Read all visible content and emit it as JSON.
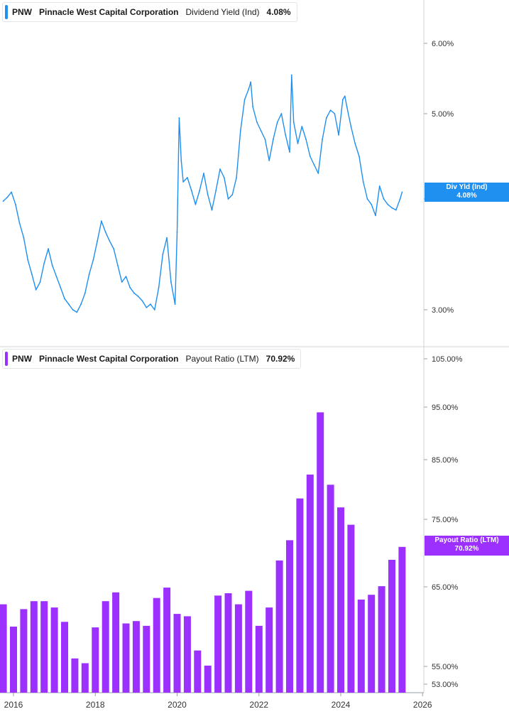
{
  "panels": {
    "top": {
      "legend": {
        "ticker": "PNW",
        "company": "Pinnacle West Capital Corporation",
        "metric": "Dividend Yield (Ind)",
        "value": "4.08%"
      },
      "flag": {
        "label": "Div Yld (Ind)",
        "value": "4.08%"
      },
      "color": "#1f8ff0"
    },
    "bottom": {
      "legend": {
        "ticker": "PNW",
        "company": "Pinnacle West Capital Corporation",
        "metric": "Payout Ratio (LTM)",
        "value": "70.92%"
      },
      "flag": {
        "label": "Payout Ratio (LTM)",
        "value": "70.92%"
      },
      "color": "#9b30ff"
    }
  },
  "x_axis": {
    "labels": [
      "2016",
      "2018",
      "2020",
      "2022",
      "2024",
      "2026"
    ]
  },
  "chart_data": [
    {
      "type": "line",
      "series": [
        {
          "name": "Dividend Yield (Ind)",
          "x": [
            2015.75,
            2015.85,
            2015.95,
            2016.05,
            2016.15,
            2016.25,
            2016.35,
            2016.45,
            2016.55,
            2016.65,
            2016.75,
            2016.85,
            2016.95,
            2017.05,
            2017.15,
            2017.25,
            2017.35,
            2017.45,
            2017.55,
            2017.65,
            2017.75,
            2017.85,
            2017.95,
            2018.05,
            2018.15,
            2018.25,
            2018.35,
            2018.45,
            2018.55,
            2018.65,
            2018.75,
            2018.85,
            2018.95,
            2019.05,
            2019.15,
            2019.25,
            2019.35,
            2019.45,
            2019.55,
            2019.65,
            2019.75,
            2019.85,
            2019.95,
            2020.0,
            2020.05,
            2020.1,
            2020.15,
            2020.25,
            2020.35,
            2020.45,
            2020.55,
            2020.65,
            2020.75,
            2020.85,
            2020.95,
            2021.05,
            2021.15,
            2021.25,
            2021.35,
            2021.45,
            2021.55,
            2021.65,
            2021.75,
            2021.8,
            2021.85,
            2021.95,
            2022.05,
            2022.15,
            2022.25,
            2022.35,
            2022.45,
            2022.55,
            2022.65,
            2022.75,
            2022.8,
            2022.85,
            2022.95,
            2023.05,
            2023.15,
            2023.25,
            2023.35,
            2023.45,
            2023.55,
            2023.65,
            2023.75,
            2023.85,
            2023.95,
            2024.05,
            2024.1,
            2024.15,
            2024.25,
            2024.35,
            2024.45,
            2024.55,
            2024.65,
            2024.75,
            2024.85,
            2024.95,
            2025.05,
            2025.15,
            2025.25,
            2025.35,
            2025.45,
            2025.5
          ],
          "y": [
            3.98,
            4.02,
            4.08,
            3.95,
            3.78,
            3.65,
            3.45,
            3.32,
            3.18,
            3.25,
            3.42,
            3.55,
            3.4,
            3.3,
            3.2,
            3.1,
            3.05,
            3.0,
            2.98,
            3.05,
            3.15,
            3.32,
            3.45,
            3.62,
            3.8,
            3.7,
            3.62,
            3.55,
            3.4,
            3.25,
            3.3,
            3.2,
            3.15,
            3.12,
            3.08,
            3.02,
            3.05,
            3.0,
            3.2,
            3.5,
            3.65,
            3.25,
            3.05,
            3.7,
            4.95,
            4.45,
            4.2,
            4.25,
            4.1,
            3.95,
            4.1,
            4.3,
            4.05,
            3.9,
            4.1,
            4.35,
            4.25,
            4.0,
            4.05,
            4.25,
            4.8,
            5.2,
            5.35,
            5.45,
            5.1,
            4.9,
            4.8,
            4.7,
            4.45,
            4.7,
            4.9,
            5.0,
            4.75,
            4.55,
            5.55,
            4.9,
            4.65,
            4.85,
            4.7,
            4.5,
            4.4,
            4.3,
            4.7,
            4.95,
            5.05,
            5.0,
            4.75,
            5.2,
            5.25,
            5.1,
            4.85,
            4.65,
            4.5,
            4.2,
            4.0,
            3.95,
            3.85,
            4.15,
            4.0,
            3.95,
            3.92,
            3.9,
            4.0,
            4.08
          ]
        }
      ],
      "ylim": [
        2.85,
        6.4
      ],
      "yticks": [
        "3.00%",
        "4.00%",
        "5.00%",
        "6.00%"
      ],
      "ytick_values": [
        3,
        4,
        5,
        6
      ]
    },
    {
      "type": "bar",
      "series": [
        {
          "name": "Payout Ratio (LTM)",
          "x": [
            2015.75,
            2016.0,
            2016.25,
            2016.5,
            2016.75,
            2017.0,
            2017.25,
            2017.5,
            2017.75,
            2018.0,
            2018.25,
            2018.5,
            2018.75,
            2019.0,
            2019.25,
            2019.5,
            2019.75,
            2020.0,
            2020.25,
            2020.5,
            2020.75,
            2021.0,
            2021.25,
            2021.5,
            2021.75,
            2022.0,
            2022.25,
            2022.5,
            2022.75,
            2023.0,
            2023.25,
            2023.5,
            2023.75,
            2024.0,
            2024.25,
            2024.5,
            2024.75,
            2025.0,
            2025.25,
            2025.5
          ],
          "values": [
            62.8,
            60.0,
            62.2,
            63.2,
            63.2,
            62.4,
            60.6,
            56.0,
            55.4,
            59.9,
            63.2,
            64.3,
            60.4,
            60.7,
            60.1,
            63.6,
            64.9,
            61.6,
            61.3,
            57.0,
            55.1,
            63.9,
            64.2,
            62.8,
            64.5,
            60.1,
            62.4,
            68.9,
            71.9,
            78.5,
            82.5,
            94.0,
            80.8,
            77.0,
            74.2,
            63.4,
            64.0,
            65.1,
            69.0,
            70.92
          ]
        }
      ],
      "ylim": [
        52.5,
        105
      ],
      "yticks": [
        "53.00%",
        "55.00%",
        "65.00%",
        "75.00%",
        "85.00%",
        "95.00%",
        "105.00%"
      ],
      "ytick_values": [
        53,
        55,
        65,
        75,
        85,
        95,
        105
      ]
    }
  ]
}
